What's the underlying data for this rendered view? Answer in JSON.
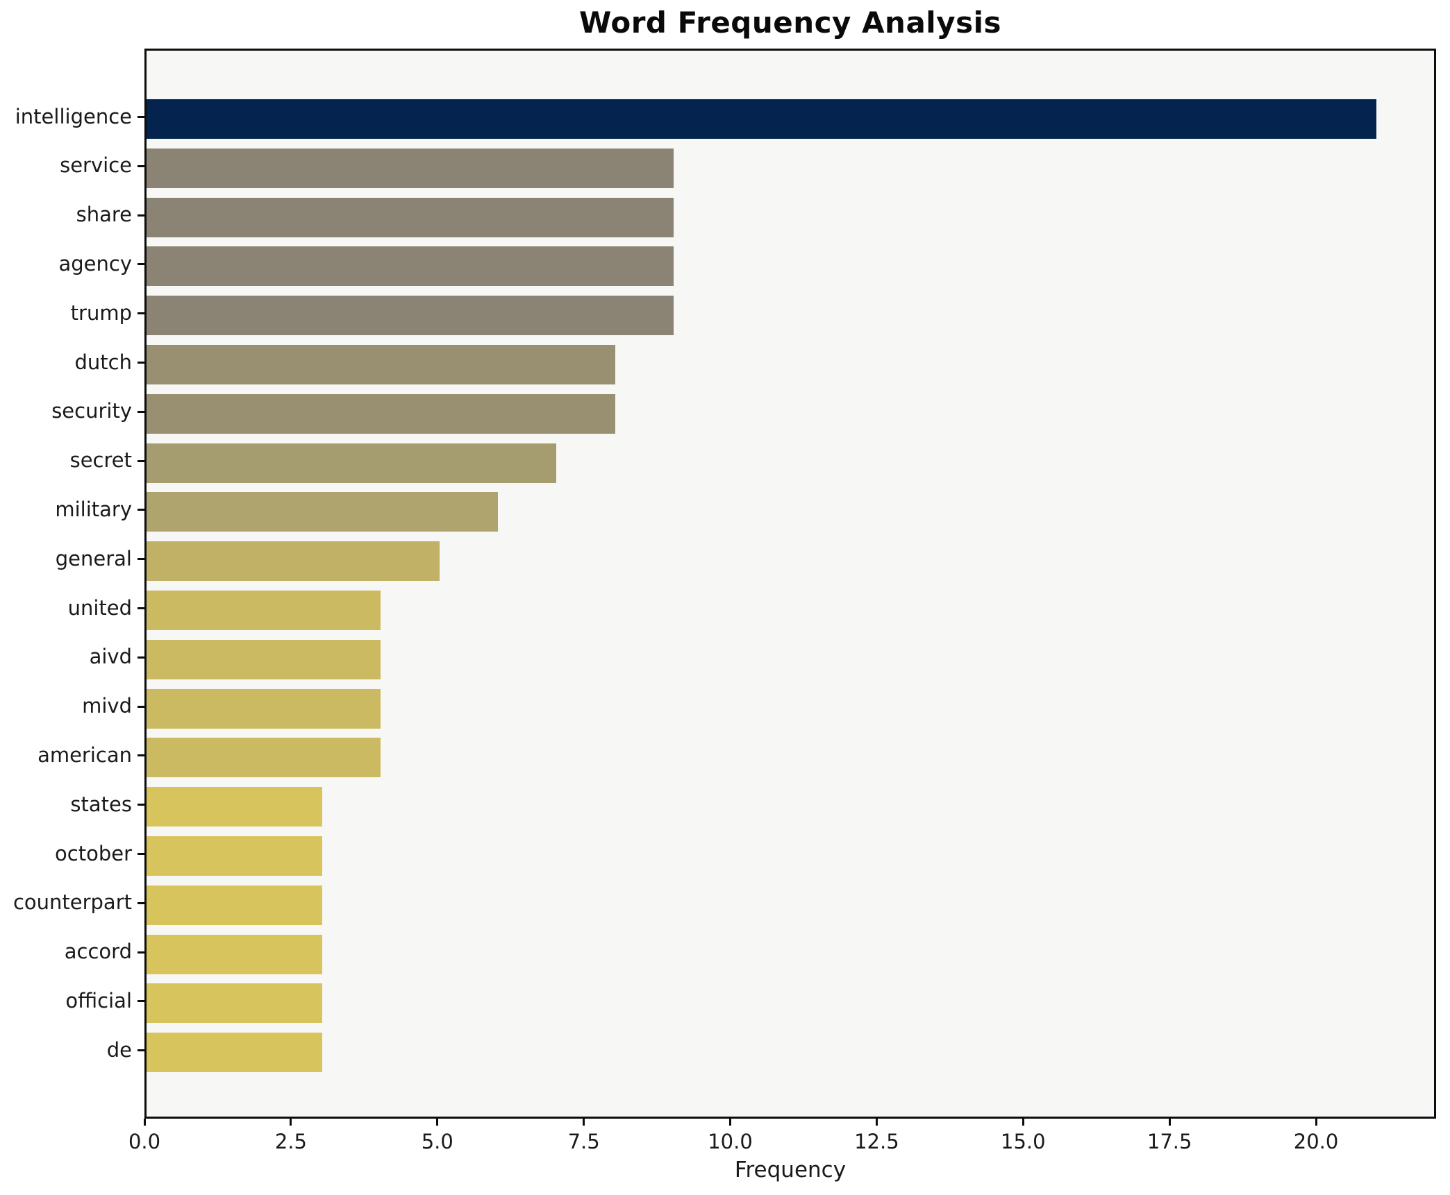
{
  "title": "Word Frequency Analysis",
  "xlabel": "Frequency",
  "chart_data": {
    "type": "bar",
    "orientation": "horizontal",
    "title": "Word Frequency Analysis",
    "xlabel": "Frequency",
    "ylabel": "",
    "categories": [
      "intelligence",
      "service",
      "share",
      "agency",
      "trump",
      "dutch",
      "security",
      "secret",
      "military",
      "general",
      "united",
      "aivd",
      "mivd",
      "american",
      "states",
      "october",
      "counterpart",
      "accord",
      "official",
      "de"
    ],
    "values": [
      21,
      9,
      9,
      9,
      9,
      8,
      8,
      7,
      6,
      5,
      4,
      4,
      4,
      4,
      3,
      3,
      3,
      3,
      3,
      3
    ],
    "bar_colors": [
      "#04234e",
      "#8b8474",
      "#8b8474",
      "#8b8474",
      "#8b8474",
      "#989071",
      "#989071",
      "#a59c6f",
      "#b0a46e",
      "#c0b167",
      "#ccba62",
      "#ccba62",
      "#ccba62",
      "#ccba62",
      "#d8c45c",
      "#d8c45c",
      "#d8c45c",
      "#d8c45c",
      "#d8c45c",
      "#d8c45c"
    ],
    "xlim": [
      0,
      22.05
    ],
    "xticks": [
      0.0,
      2.5,
      5.0,
      7.5,
      10.0,
      12.5,
      15.0,
      17.5,
      20.0
    ],
    "xtick_labels": [
      "0.0",
      "2.5",
      "5.0",
      "7.5",
      "10.0",
      "12.5",
      "15.0",
      "17.5",
      "20.0"
    ],
    "grid": false,
    "legend": null,
    "colors": {
      "plot_background": "#f7f7f6",
      "figure_background": "#ffffff",
      "spine": "#0d0d0d",
      "max_bar": "#04234e",
      "min_bar": "#d8c45c"
    }
  }
}
